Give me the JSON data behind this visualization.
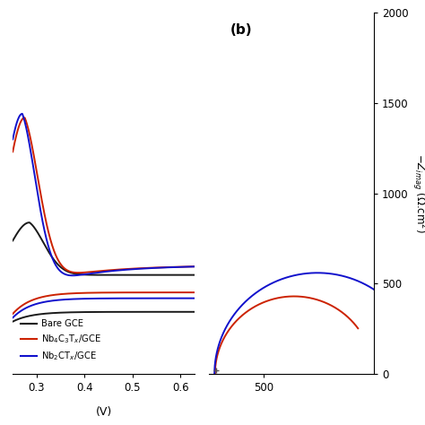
{
  "panel_b_label": "(b)",
  "colors": {
    "bare": "#1a1a1a",
    "nb4c3": "#cc2200",
    "nb2c": "#1111cc"
  },
  "legend_labels": [
    "Bare GCE",
    "Nb$_4$C$_3$T$_x$/GCE",
    "Nb$_2$CT$_x$/GCE"
  ],
  "cv_xlim": [
    0.25,
    0.63
  ],
  "cv_xticks": [
    0.3,
    0.4,
    0.5,
    0.6
  ],
  "cv_xlabel": "(V)",
  "cv_ylim": [
    -0.08,
    0.85
  ],
  "nyq_xlim": [
    200,
    1100
  ],
  "nyq_ylim": [
    0,
    2000
  ],
  "nyq_yticks": [
    0,
    500,
    1000,
    1500,
    2000
  ],
  "nyq_xtick": [
    500
  ],
  "nyq_ylabel": "$-Z_{imag}$ ($\\Omega$.cm$^2$)"
}
